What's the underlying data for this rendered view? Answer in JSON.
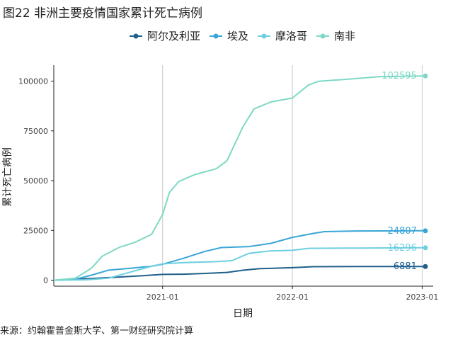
{
  "title": "图22 非洲主要疫情国家累计死亡病例",
  "source": "来源：约翰霍普金斯大学、第一财经研究院计算",
  "chart_data": {
    "type": "line",
    "xlabel": "日期",
    "ylabel": "累计死亡病例",
    "x_range": [
      "2020-03-01",
      "2023-02-01"
    ],
    "ylim": [
      -3000,
      108000
    ],
    "x_ticks": [
      {
        "date": "2021-01-01",
        "label": "2021-01"
      },
      {
        "date": "2022-01-01",
        "label": "2022-01"
      },
      {
        "date": "2023-01-01",
        "label": "2023-01"
      }
    ],
    "y_ticks": [
      {
        "value": 0,
        "label": "0"
      },
      {
        "value": 25000,
        "label": "25000"
      },
      {
        "value": 50000,
        "label": "50000"
      },
      {
        "value": 75000,
        "label": "75000"
      },
      {
        "value": 100000,
        "label": "100000"
      }
    ],
    "grid": "vertical major lines",
    "legend_position": "top",
    "series": [
      {
        "name": "阿尔及利亚",
        "color": "#1f5f8b",
        "end_label": "6881",
        "points": [
          [
            "2020-03-01",
            0
          ],
          [
            "2020-05-01",
            500
          ],
          [
            "2020-07-01",
            1000
          ],
          [
            "2020-09-01",
            1600
          ],
          [
            "2020-11-01",
            2200
          ],
          [
            "2021-01-01",
            2900
          ],
          [
            "2021-03-01",
            3000
          ],
          [
            "2021-05-01",
            3400
          ],
          [
            "2021-07-01",
            3900
          ],
          [
            "2021-08-15",
            5000
          ],
          [
            "2021-10-01",
            5800
          ],
          [
            "2022-01-01",
            6300
          ],
          [
            "2022-03-01",
            6800
          ],
          [
            "2022-07-01",
            6875
          ],
          [
            "2023-01-01",
            6881
          ],
          [
            "2023-01-10",
            6881
          ]
        ]
      },
      {
        "name": "埃及",
        "color": "#3aa6d6",
        "end_label": "24807",
        "points": [
          [
            "2020-03-01",
            0
          ],
          [
            "2020-05-01",
            500
          ],
          [
            "2020-06-15",
            2500
          ],
          [
            "2020-08-01",
            5000
          ],
          [
            "2020-10-01",
            6000
          ],
          [
            "2020-12-01",
            7000
          ],
          [
            "2021-01-01",
            8000
          ],
          [
            "2021-03-01",
            11000
          ],
          [
            "2021-05-01",
            14500
          ],
          [
            "2021-06-15",
            16400
          ],
          [
            "2021-09-01",
            16900
          ],
          [
            "2021-11-01",
            18500
          ],
          [
            "2022-01-01",
            21500
          ],
          [
            "2022-03-01",
            23500
          ],
          [
            "2022-04-01",
            24400
          ],
          [
            "2022-07-01",
            24700
          ],
          [
            "2023-01-01",
            24807
          ],
          [
            "2023-01-10",
            24807
          ]
        ]
      },
      {
        "name": "摩洛哥",
        "color": "#6dcfe0",
        "end_label": "16296",
        "points": [
          [
            "2020-03-01",
            0
          ],
          [
            "2020-06-01",
            200
          ],
          [
            "2020-08-01",
            1000
          ],
          [
            "2020-10-01",
            4000
          ],
          [
            "2020-12-01",
            7000
          ],
          [
            "2021-01-01",
            8200
          ],
          [
            "2021-03-01",
            8800
          ],
          [
            "2021-06-01",
            9300
          ],
          [
            "2021-07-15",
            9800
          ],
          [
            "2021-09-01",
            13500
          ],
          [
            "2021-11-01",
            14700
          ],
          [
            "2022-01-01",
            15000
          ],
          [
            "2022-02-15",
            16000
          ],
          [
            "2022-06-01",
            16100
          ],
          [
            "2023-01-01",
            16296
          ],
          [
            "2023-01-10",
            16296
          ]
        ]
      },
      {
        "name": "南非",
        "color": "#7dd9c4",
        "end_label": "102595",
        "points": [
          [
            "2020-03-01",
            0
          ],
          [
            "2020-05-01",
            1000
          ],
          [
            "2020-06-15",
            6000
          ],
          [
            "2020-07-15",
            12000
          ],
          [
            "2020-09-01",
            16500
          ],
          [
            "2020-10-15",
            19000
          ],
          [
            "2020-12-01",
            23000
          ],
          [
            "2021-01-01",
            33000
          ],
          [
            "2021-01-20",
            44000
          ],
          [
            "2021-02-15",
            49500
          ],
          [
            "2021-04-01",
            53000
          ],
          [
            "2021-06-01",
            56000
          ],
          [
            "2021-07-01",
            60000
          ],
          [
            "2021-08-15",
            77000
          ],
          [
            "2021-09-15",
            86000
          ],
          [
            "2021-11-01",
            89500
          ],
          [
            "2022-01-01",
            91500
          ],
          [
            "2022-02-15",
            98000
          ],
          [
            "2022-03-15",
            99900
          ],
          [
            "2022-06-01",
            100900
          ],
          [
            "2022-09-01",
            102200
          ],
          [
            "2023-01-01",
            102595
          ],
          [
            "2023-01-10",
            102595
          ]
        ]
      }
    ]
  }
}
